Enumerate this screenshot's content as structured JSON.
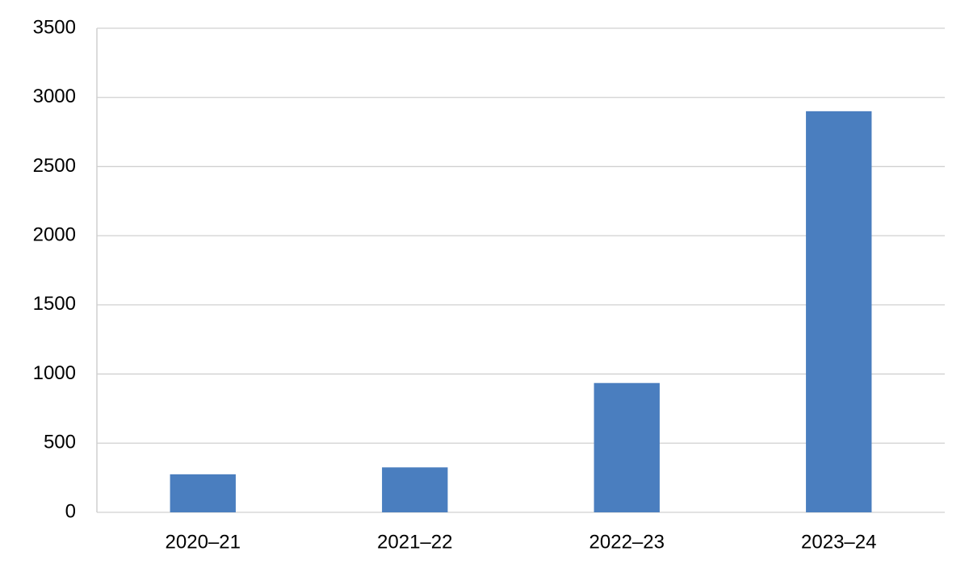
{
  "chart_data": {
    "type": "bar",
    "categories": [
      "2020–21",
      "2021–22",
      "2022–23",
      "2023–24"
    ],
    "values": [
      275,
      325,
      935,
      2900
    ],
    "color": "#4a7ebf",
    "ylim": [
      0,
      3500
    ],
    "yticks": [
      0,
      500,
      1000,
      1500,
      2000,
      2500,
      3000,
      3500
    ],
    "grid": true
  }
}
